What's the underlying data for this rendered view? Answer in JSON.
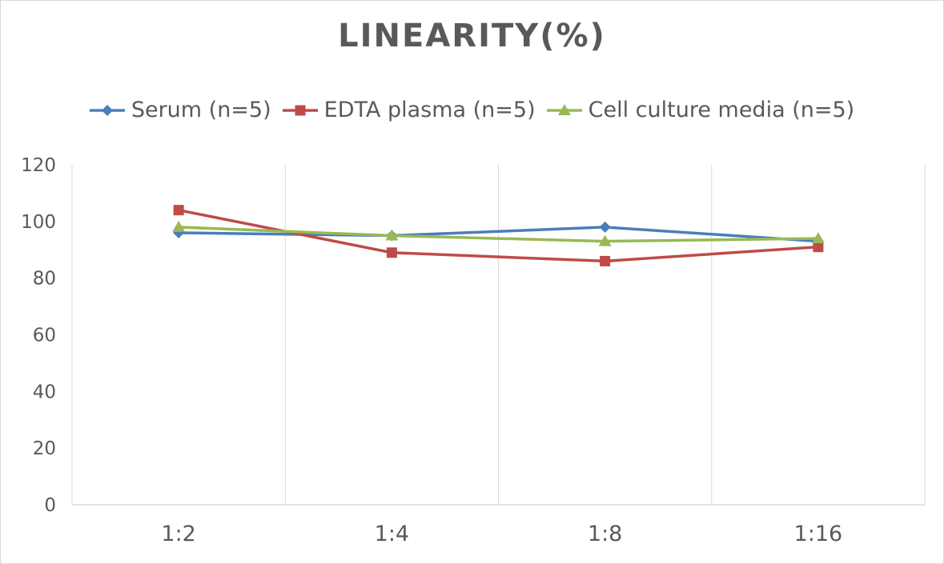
{
  "chart_data": {
    "type": "line",
    "title": "LINEARITY(%)",
    "categories": [
      "1:2",
      "1:4",
      "1:8",
      "1:16"
    ],
    "series": [
      {
        "name": "Serum (n=5)",
        "values": [
          96,
          95,
          98,
          93
        ],
        "color": "#4a7ebb",
        "marker": "diamond"
      },
      {
        "name": "EDTA plasma (n=5)",
        "values": [
          104,
          89,
          86,
          91
        ],
        "color": "#be4b48",
        "marker": "square"
      },
      {
        "name": "Cell culture media (n=5)",
        "values": [
          98,
          95,
          93,
          94
        ],
        "color": "#98b954",
        "marker": "triangle"
      }
    ],
    "ylim": [
      0,
      120
    ],
    "yticks": [
      0,
      20,
      40,
      60,
      80,
      100,
      120
    ],
    "grid": "vertical",
    "legend": "top"
  }
}
